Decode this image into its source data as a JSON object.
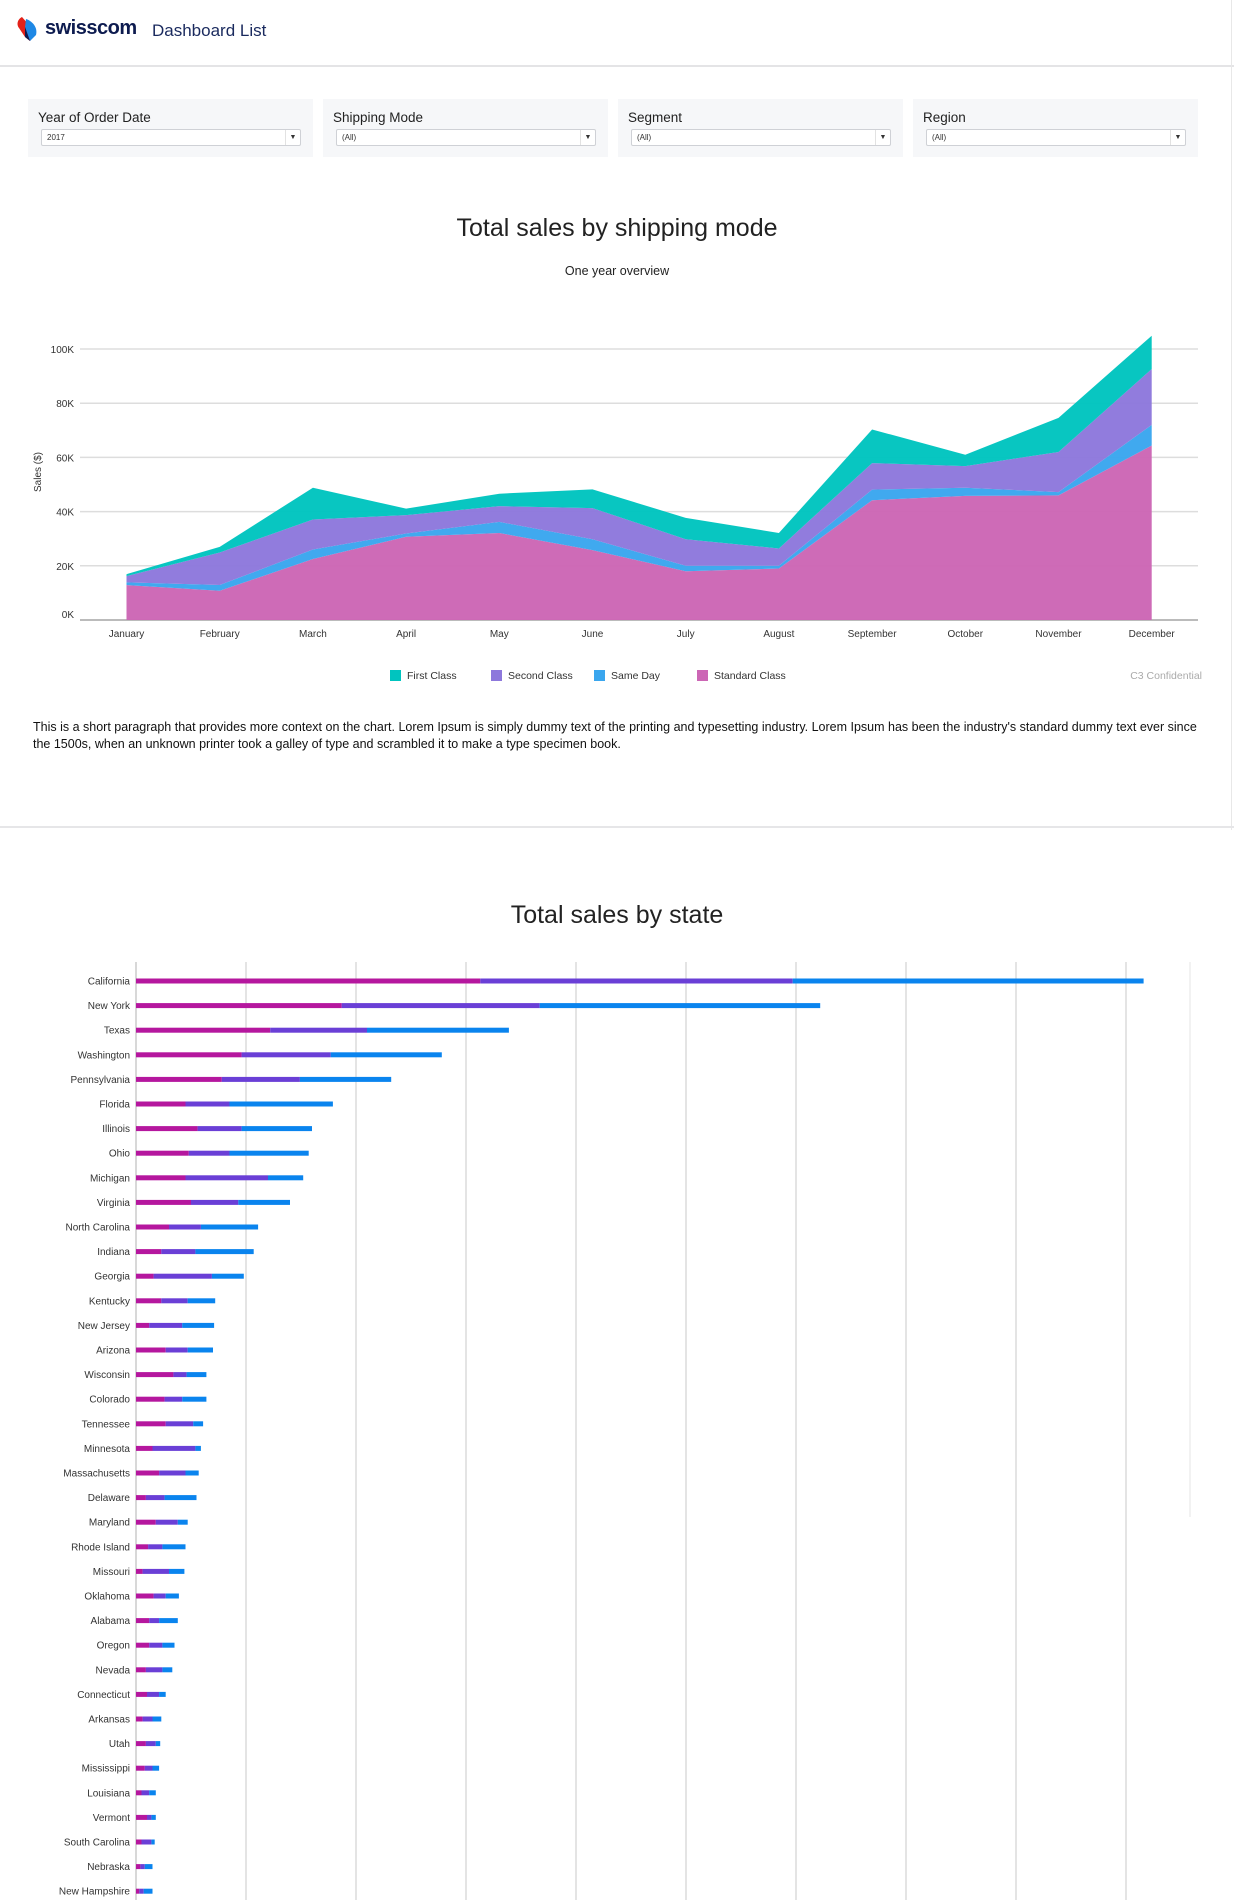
{
  "header": {
    "brand": "swisscom",
    "nav_title": "Dashboard List"
  },
  "filters": [
    {
      "label": "Year of Order Date",
      "value": "2017"
    },
    {
      "label": "Shipping Mode",
      "value": "(All)"
    },
    {
      "label": "Segment",
      "value": "(All)"
    },
    {
      "label": "Region",
      "value": "(All)"
    }
  ],
  "shipping_section": {
    "title": "Total sales by shipping mode",
    "subtitle": "One year overview",
    "confidential": "C3 Confidential",
    "paragraph": "This is a short paragraph that provides more context on the chart. Lorem Ipsum is simply dummy text of the printing and typesetting industry. Lorem Ipsum has been the industry's standard dummy text ever since the 1500s, when an unknown printer took a galley of type and scrambled it to make a type specimen book."
  },
  "state_section": {
    "title": "Total sales by state"
  },
  "chart_data": [
    {
      "type": "area",
      "stacked": true,
      "title": "Total sales by shipping mode",
      "subtitle": "One year overview",
      "ylabel": "Sales ($)",
      "xlabel": "",
      "categories": [
        "January",
        "February",
        "March",
        "April",
        "May",
        "June",
        "July",
        "August",
        "September",
        "October",
        "November",
        "December"
      ],
      "yticks": [
        "0K",
        "20K",
        "40K",
        "60K",
        "80K",
        "100K"
      ],
      "ylim": [
        0,
        100000
      ],
      "grid": true,
      "legend": "bottom",
      "series": [
        {
          "name": "Standard Class",
          "color": "#cc66b5",
          "values": [
            12900,
            10800,
            22500,
            30700,
            32100,
            25800,
            18000,
            19000,
            44200,
            45800,
            46000,
            64400
          ]
        },
        {
          "name": "Same Day",
          "color": "#3aa6ee",
          "values": [
            1000,
            2100,
            3500,
            1200,
            4100,
            4000,
            2000,
            1000,
            3900,
            3000,
            1200,
            7600
          ]
        },
        {
          "name": "Second Class",
          "color": "#8d78dc",
          "values": [
            2300,
            12000,
            11100,
            6800,
            5800,
            11500,
            9800,
            6400,
            9800,
            8000,
            14800,
            20600
          ]
        },
        {
          "name": "First Class",
          "color": "#00c4bf",
          "values": [
            700,
            2100,
            11700,
            2400,
            4600,
            6900,
            7900,
            5700,
            12400,
            4200,
            12600,
            12300
          ]
        }
      ],
      "legend_order": [
        "First Class",
        "Second Class",
        "Same Day",
        "Standard Class"
      ]
    },
    {
      "type": "bar",
      "orientation": "horizontal",
      "stacked": true,
      "title": "Total sales by state",
      "grid": true,
      "categories": [
        "California",
        "New York",
        "Texas",
        "Washington",
        "Pennsylvania",
        "Florida",
        "Illinois",
        "Ohio",
        "Michigan",
        "Virginia",
        "North Carolina",
        "Indiana",
        "Georgia",
        "Kentucky",
        "New Jersey",
        "Arizona",
        "Wisconsin",
        "Colorado",
        "Tennessee",
        "Minnesota",
        "Massachusetts",
        "Delaware",
        "Maryland",
        "Rhode Island",
        "Missouri",
        "Oklahoma",
        "Alabama",
        "Oregon",
        "Nevada",
        "Connecticut",
        "Arkansas",
        "Utah",
        "Mississippi",
        "Louisiana",
        "Vermont",
        "South Carolina",
        "Nebraska",
        "New Hampshire"
      ],
      "series": [
        {
          "color": "#b5179e",
          "values": [
            3.13,
            1.87,
            1.22,
            0.96,
            0.78,
            0.45,
            0.56,
            0.48,
            0.45,
            0.5,
            0.3,
            0.23,
            0.16,
            0.23,
            0.12,
            0.27,
            0.34,
            0.26,
            0.27,
            0.15,
            0.21,
            0.09,
            0.18,
            0.11,
            0.06,
            0.16,
            0.12,
            0.12,
            0.09,
            0.1,
            0.06,
            0.09,
            0.08,
            0.05,
            0.1,
            0.05,
            0.04,
            0.03
          ]
        },
        {
          "color": "#6a3fd6",
          "values": [
            2.84,
            1.8,
            0.88,
            0.81,
            0.71,
            0.4,
            0.4,
            0.37,
            0.75,
            0.43,
            0.29,
            0.31,
            0.53,
            0.24,
            0.3,
            0.2,
            0.12,
            0.16,
            0.25,
            0.39,
            0.24,
            0.17,
            0.2,
            0.13,
            0.24,
            0.11,
            0.09,
            0.12,
            0.15,
            0.11,
            0.09,
            0.09,
            0.07,
            0.07,
            0.04,
            0.09,
            0.04,
            0.04
          ]
        },
        {
          "color": "#0a84ee",
          "values": [
            3.19,
            2.55,
            1.29,
            1.01,
            0.83,
            0.94,
            0.64,
            0.72,
            0.32,
            0.47,
            0.52,
            0.53,
            0.29,
            0.25,
            0.29,
            0.23,
            0.18,
            0.22,
            0.09,
            0.05,
            0.12,
            0.29,
            0.09,
            0.21,
            0.14,
            0.12,
            0.17,
            0.11,
            0.09,
            0.06,
            0.08,
            0.04,
            0.06,
            0.06,
            0.04,
            0.03,
            0.07,
            0.08
          ]
        }
      ],
      "xlim": [
        0,
        10
      ]
    }
  ]
}
